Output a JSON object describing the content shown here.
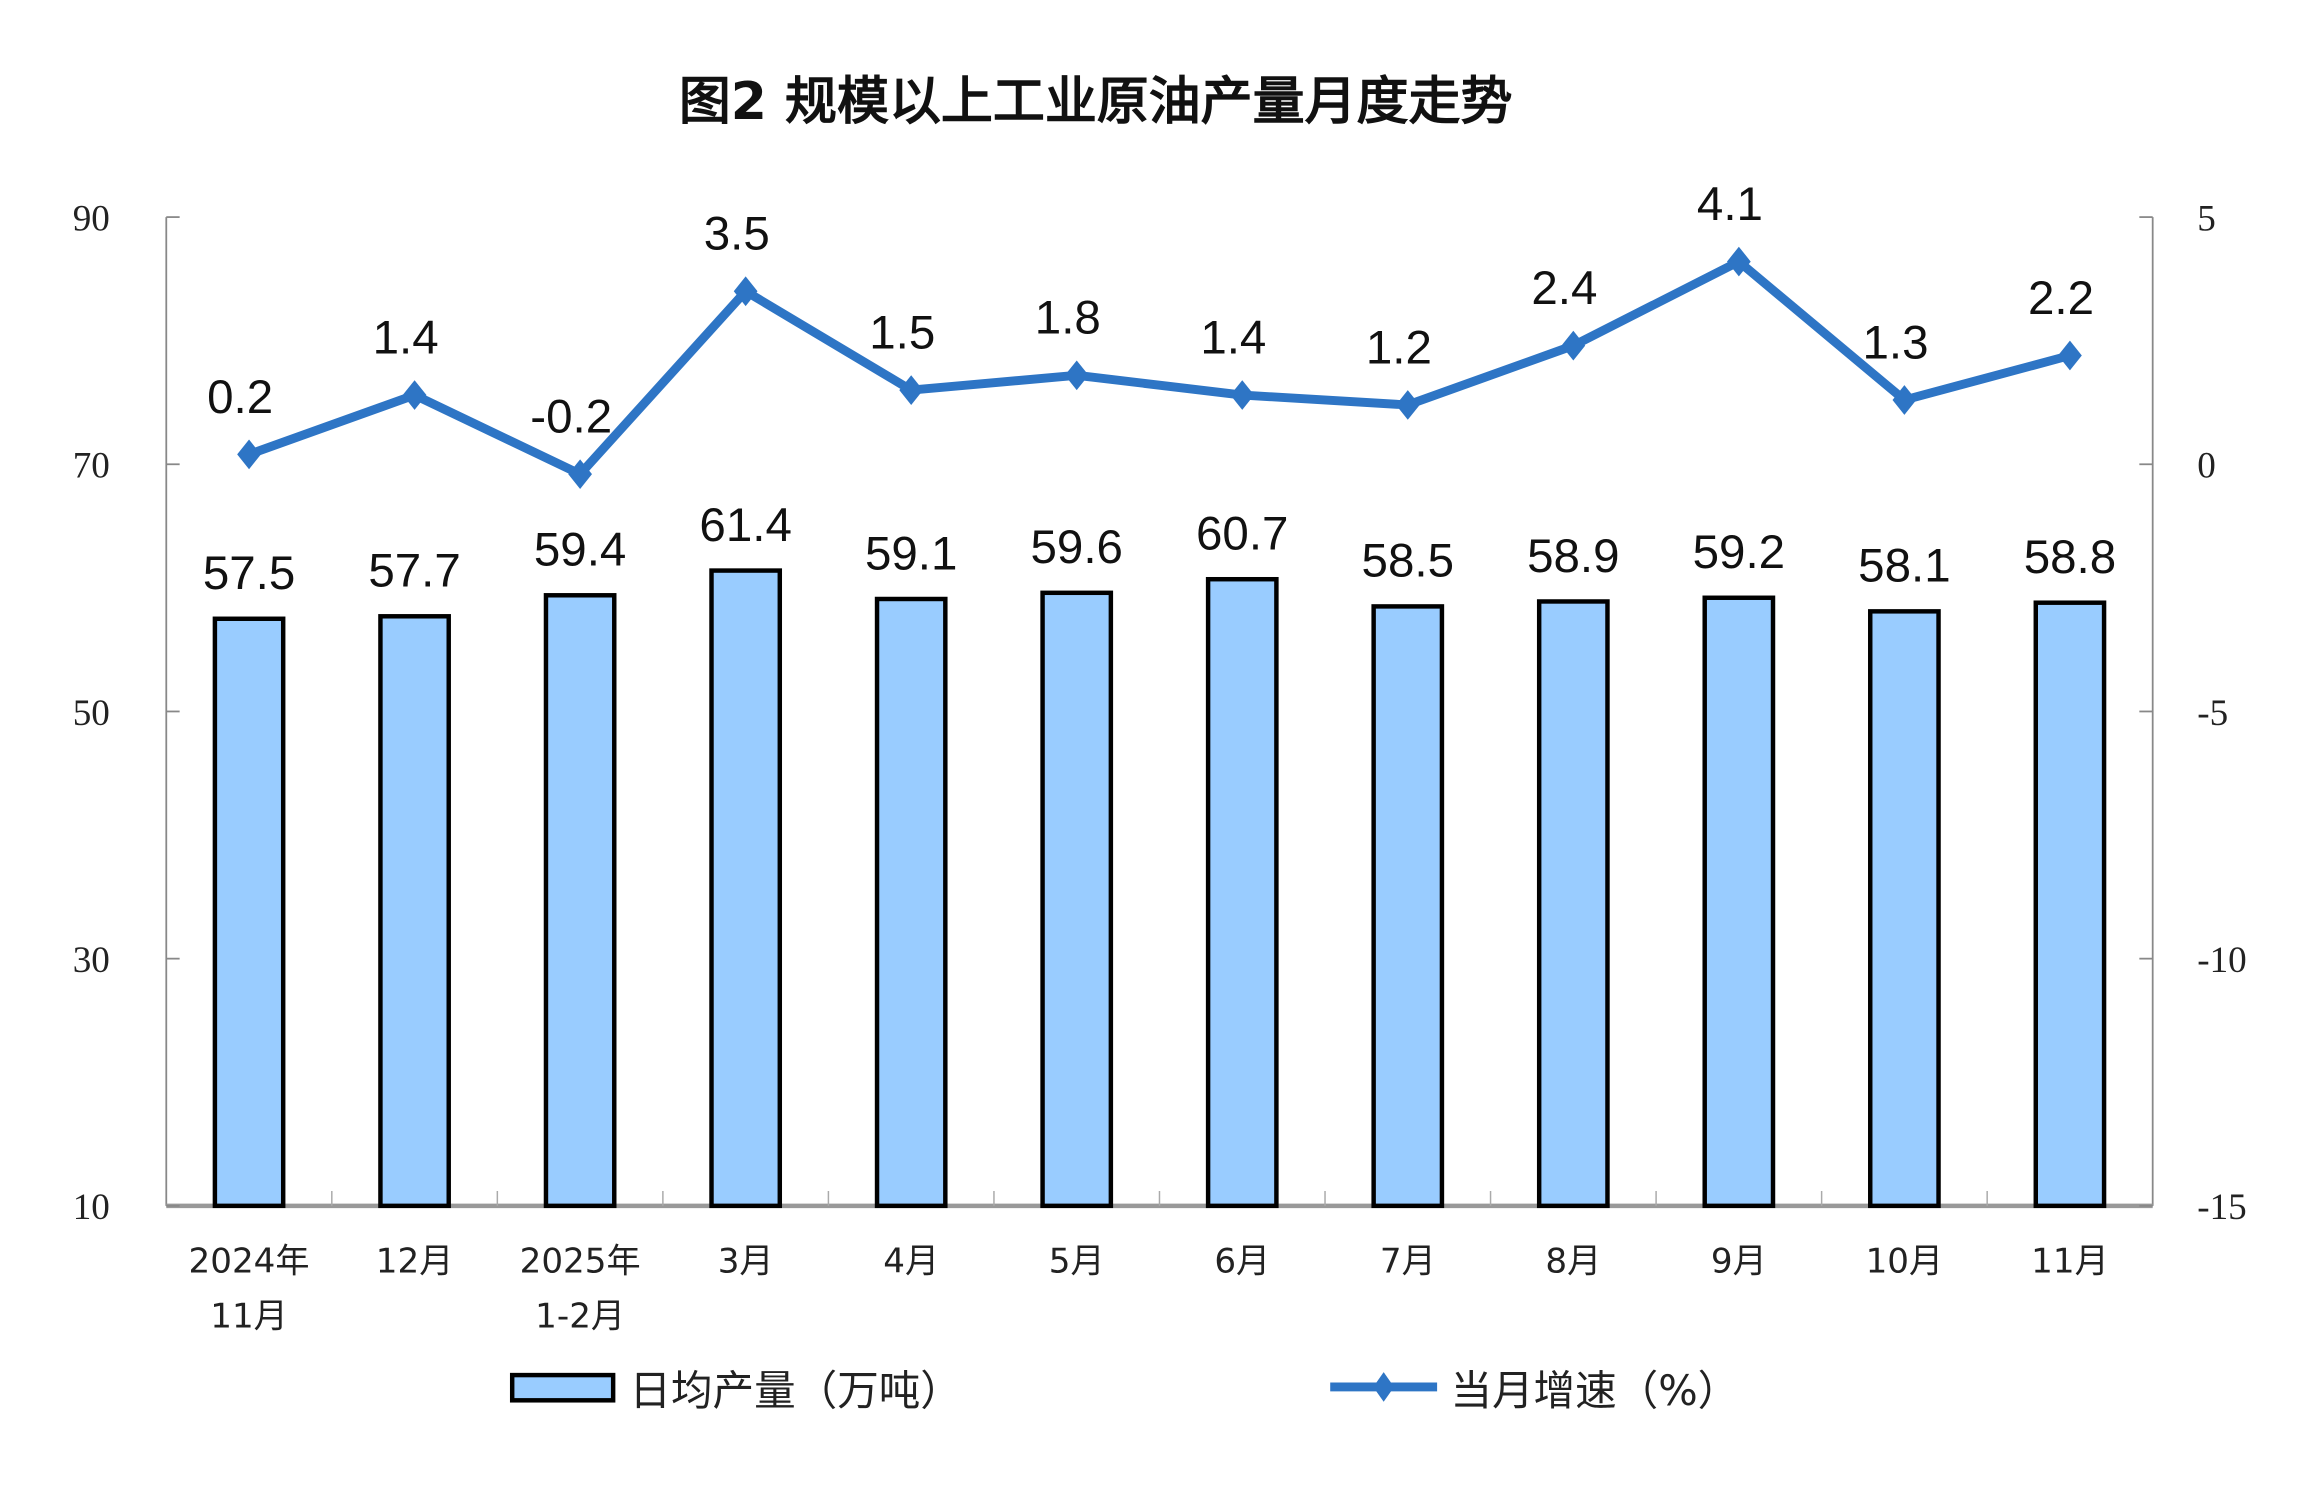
{
  "chart_data": {
    "type": "bar+line",
    "title": "图2  规模以上工业原油产量月度走势",
    "categories": [
      [
        "2024年",
        "11月"
      ],
      [
        "12月"
      ],
      [
        "2025年",
        "1-2月"
      ],
      [
        "3月"
      ],
      [
        "4月"
      ],
      [
        "5月"
      ],
      [
        "6月"
      ],
      [
        "7月"
      ],
      [
        "8月"
      ],
      [
        "9月"
      ],
      [
        "10月"
      ],
      [
        "11月"
      ]
    ],
    "series": [
      {
        "name": "日均产量（万吨）",
        "type": "bar",
        "axis": "left",
        "color": "#99CCFF",
        "edge": "#000000",
        "values": [
          57.5,
          57.7,
          59.4,
          61.4,
          59.1,
          59.6,
          60.7,
          58.5,
          58.9,
          59.2,
          58.1,
          58.8
        ],
        "labels": [
          "57.5",
          "57.7",
          "59.4",
          "61.4",
          "59.1",
          "59.6",
          "60.7",
          "58.5",
          "58.9",
          "59.2",
          "58.1",
          "58.8"
        ]
      },
      {
        "name": "当月增速（%）",
        "type": "line",
        "axis": "right",
        "color": "#2E75C5",
        "marker": "diamond",
        "values": [
          0.2,
          1.4,
          -0.2,
          3.5,
          1.5,
          1.8,
          1.4,
          1.2,
          2.4,
          4.1,
          1.3,
          2.2
        ],
        "labels": [
          "0.2",
          "1.4",
          "-0.2",
          "3.5",
          "1.5",
          "1.8",
          "1.4",
          "1.2",
          "2.4",
          "4.1",
          "1.3",
          "2.2"
        ]
      }
    ],
    "y_left": {
      "range": [
        10,
        90
      ],
      "ticks": [
        "10",
        "30",
        "50",
        "70",
        "90"
      ]
    },
    "y_right": {
      "range": [
        -15,
        5
      ],
      "ticks": [
        "-15",
        "-10",
        "-5",
        "0",
        "5"
      ]
    },
    "grid": false,
    "legend_position": "bottom"
  }
}
